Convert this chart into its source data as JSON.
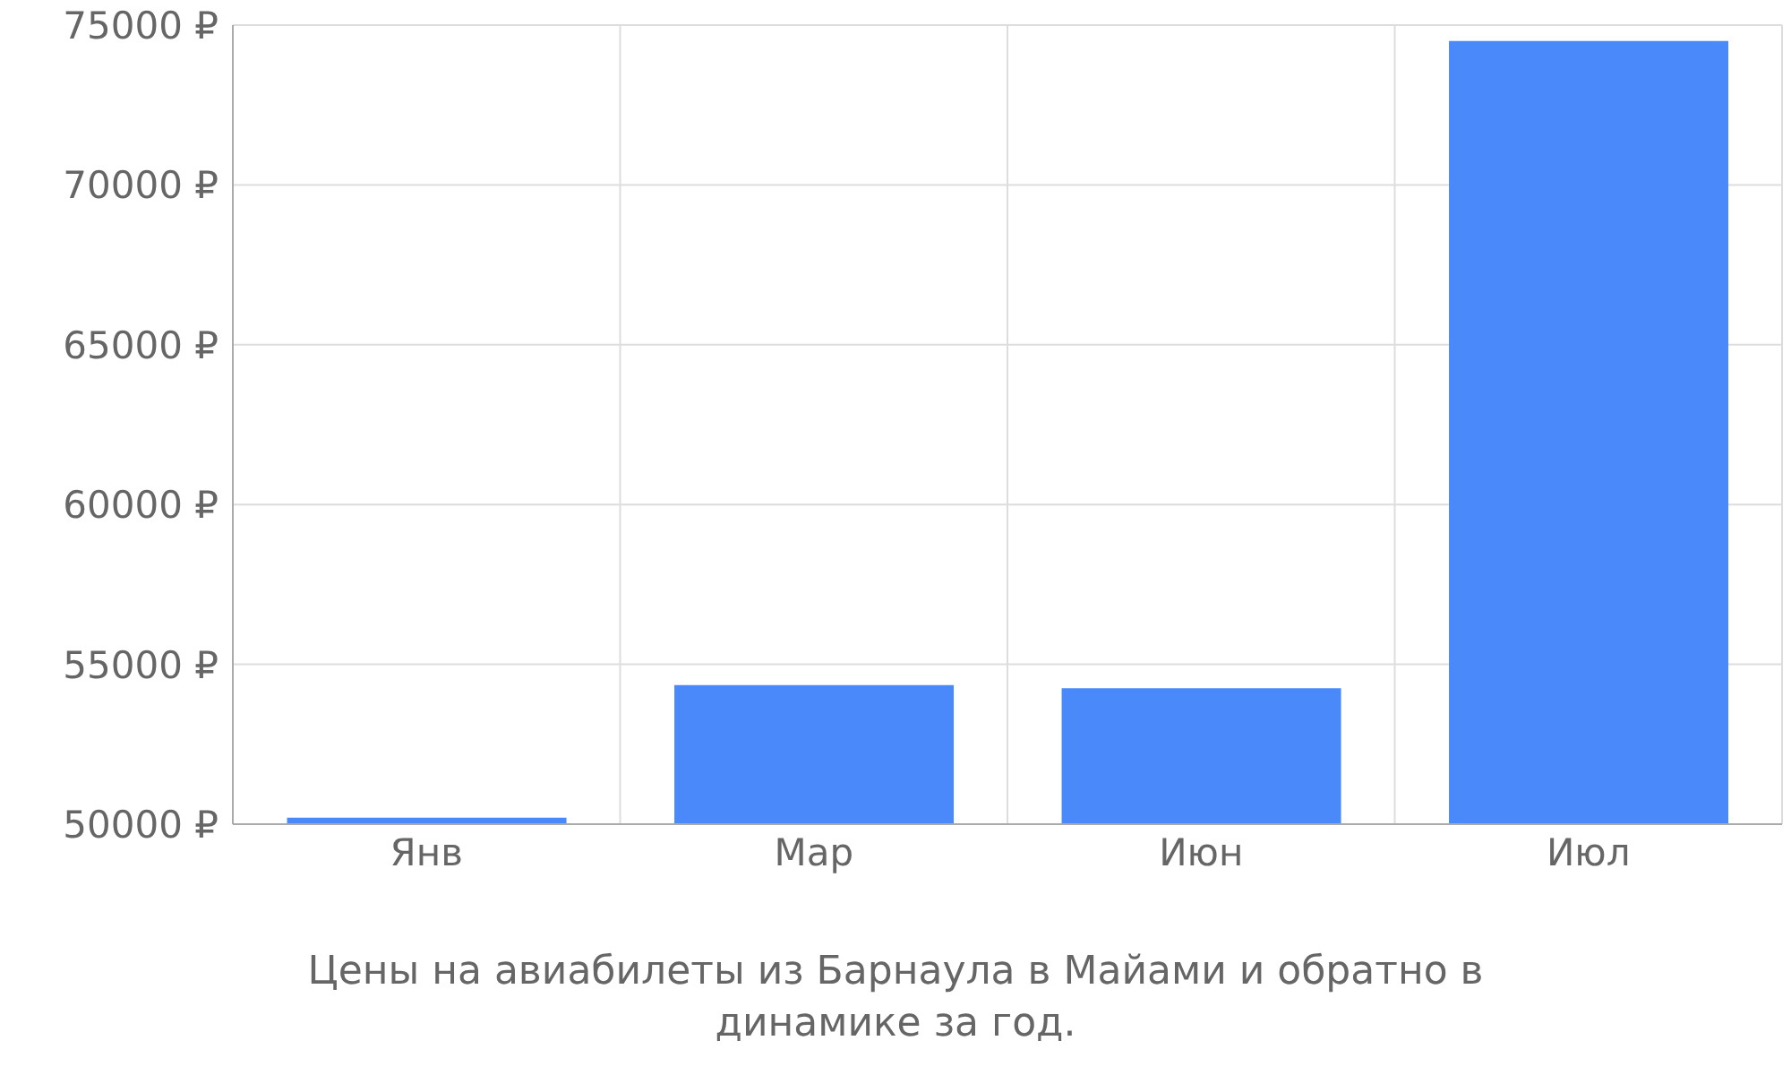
{
  "chart_data": {
    "type": "bar",
    "title": "Цены на авиабилеты из Барнаула в Майами и обратно в динамике за год.",
    "categories": [
      "Янв",
      "Мар",
      "Июн",
      "Июл"
    ],
    "values": [
      50200,
      54350,
      54250,
      74500
    ],
    "color": "#4a89fa",
    "ylim": [
      50000,
      75000
    ],
    "yticks": [
      {
        "value": 50000,
        "label": "50000 ₽"
      },
      {
        "value": 55000,
        "label": "55000 ₽"
      },
      {
        "value": 60000,
        "label": "60000 ₽"
      },
      {
        "value": 65000,
        "label": "65000 ₽"
      },
      {
        "value": 70000,
        "label": "70000 ₽"
      },
      {
        "value": 75000,
        "label": "75000 ₽"
      }
    ],
    "grid": true
  }
}
